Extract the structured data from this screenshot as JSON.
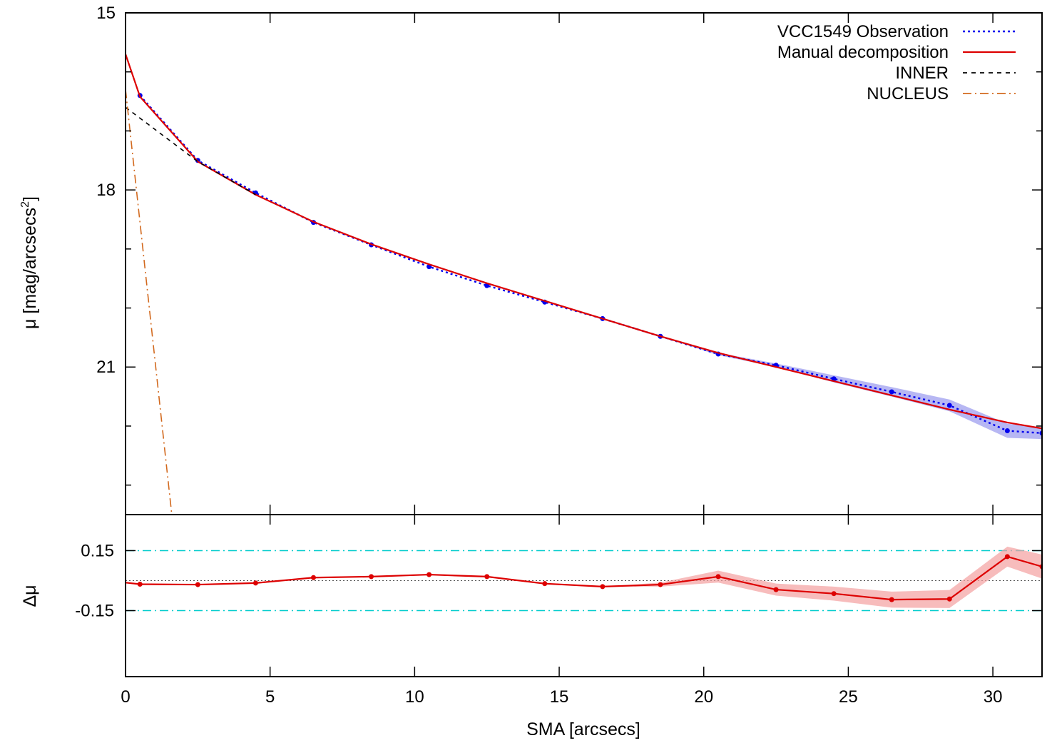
{
  "chart_data": [
    {
      "type": "line",
      "title": "",
      "xlabel": "",
      "ylabel": "μ [mag/arcsecs²]",
      "ylabel_main": "μ [mag/arcsecs",
      "ylabel_sup": "2",
      "ylabel_tail": "]",
      "xlim": [
        0,
        31.7
      ],
      "ylim": [
        15,
        23.5
      ],
      "y_reversed": true,
      "y_ticks": [
        15,
        18,
        21
      ],
      "y_tick_labels": [
        "15",
        "18",
        "21"
      ],
      "y_minor_ticks": [
        16,
        17,
        19,
        20,
        22,
        23
      ],
      "legend": {
        "position": "top-right"
      },
      "series": [
        {
          "name": "VCC1549 Observation",
          "style": "dotted-with-points",
          "color": "#0000ee",
          "band_color": "#9999ee",
          "x": [
            0.5,
            2.5,
            4.5,
            6.5,
            8.5,
            10.5,
            12.5,
            14.5,
            16.5,
            18.5,
            20.5,
            22.5,
            24.5,
            26.5,
            28.5,
            30.5,
            31.7
          ],
          "y": [
            16.4,
            17.5,
            18.05,
            18.55,
            18.93,
            19.3,
            19.62,
            19.9,
            20.18,
            20.48,
            20.78,
            20.97,
            21.2,
            21.42,
            21.65,
            22.08,
            22.12
          ],
          "err": [
            0.0,
            0.0,
            0.0,
            0.0,
            0.0,
            0.0,
            0.0,
            0.0,
            0.0,
            0.0,
            0.02,
            0.03,
            0.06,
            0.08,
            0.1,
            0.12,
            0.1
          ]
        },
        {
          "name": "Manual decomposition",
          "style": "solid",
          "color": "#dd0000",
          "x": [
            0,
            0.5,
            2.5,
            4.5,
            6.5,
            8.5,
            10.5,
            12.5,
            14.5,
            16.5,
            18.5,
            20.5,
            22.5,
            24.5,
            26.5,
            28.5,
            30.5,
            31.7
          ],
          "y": [
            15.7,
            16.42,
            17.52,
            18.08,
            18.54,
            18.92,
            19.26,
            19.58,
            19.88,
            20.18,
            20.48,
            20.76,
            21.0,
            21.24,
            21.48,
            21.72,
            21.94,
            22.04
          ]
        },
        {
          "name": "INNER",
          "style": "dashed",
          "color": "#000000",
          "x": [
            0,
            2.5,
            4.5
          ],
          "y": [
            16.6,
            17.52,
            18.08
          ]
        },
        {
          "name": "NUCLEUS",
          "style": "dash-dot",
          "color": "#d2691e",
          "x": [
            0,
            1.6
          ],
          "y": [
            16.3,
            23.5
          ]
        }
      ]
    },
    {
      "type": "line",
      "title": "",
      "xlabel": "SMA [arcsecs]",
      "ylabel": "Δμ",
      "xlim": [
        0,
        31.7
      ],
      "ylim": [
        -0.48,
        0.33
      ],
      "x_ticks": [
        0,
        5,
        10,
        15,
        20,
        25,
        30
      ],
      "x_tick_labels": [
        "0",
        "5",
        "10",
        "15",
        "20",
        "25",
        "30"
      ],
      "y_ticks": [
        0.15,
        -0.15
      ],
      "y_tick_labels": [
        "0.15",
        "-0.15"
      ],
      "reference_lines": [
        {
          "y": 0.15,
          "style": "dash-dot",
          "color": "#00cccc"
        },
        {
          "y": -0.15,
          "style": "dash-dot",
          "color": "#00cccc"
        },
        {
          "y": 0.0,
          "style": "dotted",
          "color": "#555555"
        }
      ],
      "series": [
        {
          "name": "",
          "style": "solid-with-points",
          "color": "#dd0000",
          "band_color": "#f4a0a0",
          "x": [
            0,
            0.5,
            2.5,
            4.5,
            6.5,
            8.5,
            10.5,
            12.5,
            14.5,
            16.5,
            18.5,
            20.5,
            22.5,
            24.5,
            26.5,
            28.5,
            30.5,
            31.7
          ],
          "y": [
            -0.01,
            -0.018,
            -0.02,
            -0.012,
            0.015,
            0.02,
            0.03,
            0.02,
            -0.015,
            -0.03,
            -0.02,
            0.02,
            -0.045,
            -0.065,
            -0.095,
            -0.092,
            0.12,
            0.07
          ],
          "err": [
            0.0,
            0.0,
            0.0,
            0.0,
            0.0,
            0.0,
            0.0,
            0.0,
            0.0,
            0.0,
            0.01,
            0.03,
            0.03,
            0.035,
            0.04,
            0.045,
            0.05,
            0.06
          ]
        }
      ]
    }
  ]
}
